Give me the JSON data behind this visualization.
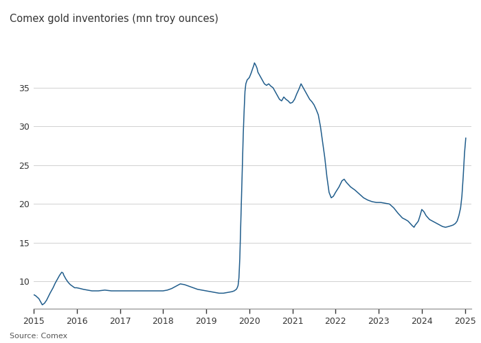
{
  "title": "Comex gold inventories (mn troy ounces)",
  "source": "Source: Comex",
  "line_color": "#1f5c8b",
  "background_color": "#ffffff",
  "xlim": [
    2015.0,
    2025.15
  ],
  "ylim": [
    6.5,
    41
  ],
  "yticks": [
    10,
    15,
    20,
    25,
    30,
    35
  ],
  "xtick_positions": [
    2015,
    2016,
    2017,
    2018,
    2019,
    2020,
    2021,
    2022,
    2023,
    2024,
    2025
  ],
  "xtick_labels": [
    "2015",
    "2016",
    "2017",
    "2018",
    "2019",
    "2020",
    "2021",
    "2022",
    "2023",
    "2024",
    "2025"
  ],
  "data": [
    [
      2015.0,
      8.3
    ],
    [
      2015.04,
      8.2
    ],
    [
      2015.08,
      8.0
    ],
    [
      2015.12,
      7.8
    ],
    [
      2015.16,
      7.4
    ],
    [
      2015.2,
      7.0
    ],
    [
      2015.25,
      7.2
    ],
    [
      2015.3,
      7.6
    ],
    [
      2015.38,
      8.5
    ],
    [
      2015.45,
      9.2
    ],
    [
      2015.5,
      9.8
    ],
    [
      2015.55,
      10.3
    ],
    [
      2015.6,
      10.8
    ],
    [
      2015.65,
      11.2
    ],
    [
      2015.68,
      11.1
    ],
    [
      2015.7,
      10.8
    ],
    [
      2015.75,
      10.3
    ],
    [
      2015.8,
      9.9
    ],
    [
      2015.85,
      9.6
    ],
    [
      2015.9,
      9.4
    ],
    [
      2015.95,
      9.2
    ],
    [
      2016.0,
      9.2
    ],
    [
      2016.08,
      9.1
    ],
    [
      2016.15,
      9.0
    ],
    [
      2016.25,
      8.9
    ],
    [
      2016.35,
      8.8
    ],
    [
      2016.5,
      8.8
    ],
    [
      2016.65,
      8.9
    ],
    [
      2016.8,
      8.8
    ],
    [
      2016.95,
      8.8
    ],
    [
      2017.1,
      8.8
    ],
    [
      2017.25,
      8.8
    ],
    [
      2017.4,
      8.8
    ],
    [
      2017.55,
      8.8
    ],
    [
      2017.7,
      8.8
    ],
    [
      2017.85,
      8.8
    ],
    [
      2018.0,
      8.8
    ],
    [
      2018.1,
      8.9
    ],
    [
      2018.2,
      9.1
    ],
    [
      2018.3,
      9.4
    ],
    [
      2018.4,
      9.7
    ],
    [
      2018.5,
      9.6
    ],
    [
      2018.6,
      9.4
    ],
    [
      2018.7,
      9.2
    ],
    [
      2018.8,
      9.0
    ],
    [
      2018.9,
      8.9
    ],
    [
      2019.0,
      8.8
    ],
    [
      2019.1,
      8.7
    ],
    [
      2019.2,
      8.6
    ],
    [
      2019.3,
      8.5
    ],
    [
      2019.4,
      8.5
    ],
    [
      2019.5,
      8.6
    ],
    [
      2019.6,
      8.7
    ],
    [
      2019.65,
      8.8
    ],
    [
      2019.7,
      9.0
    ],
    [
      2019.72,
      9.2
    ],
    [
      2019.74,
      9.5
    ],
    [
      2019.76,
      10.5
    ],
    [
      2019.78,
      13.0
    ],
    [
      2019.8,
      17.0
    ],
    [
      2019.82,
      21.0
    ],
    [
      2019.84,
      25.0
    ],
    [
      2019.86,
      29.0
    ],
    [
      2019.88,
      32.0
    ],
    [
      2019.9,
      34.5
    ],
    [
      2019.92,
      35.5
    ],
    [
      2019.95,
      36.0
    ],
    [
      2020.0,
      36.3
    ],
    [
      2020.03,
      36.7
    ],
    [
      2020.05,
      37.0
    ],
    [
      2020.08,
      37.5
    ],
    [
      2020.1,
      37.8
    ],
    [
      2020.12,
      38.2
    ],
    [
      2020.15,
      37.9
    ],
    [
      2020.18,
      37.5
    ],
    [
      2020.2,
      37.0
    ],
    [
      2020.25,
      36.5
    ],
    [
      2020.3,
      36.0
    ],
    [
      2020.35,
      35.5
    ],
    [
      2020.4,
      35.3
    ],
    [
      2020.45,
      35.5
    ],
    [
      2020.5,
      35.2
    ],
    [
      2020.55,
      35.0
    ],
    [
      2020.6,
      34.5
    ],
    [
      2020.65,
      34.0
    ],
    [
      2020.7,
      33.5
    ],
    [
      2020.75,
      33.3
    ],
    [
      2020.8,
      33.8
    ],
    [
      2020.85,
      33.5
    ],
    [
      2020.9,
      33.3
    ],
    [
      2020.95,
      33.0
    ],
    [
      2021.0,
      33.1
    ],
    [
      2021.05,
      33.5
    ],
    [
      2021.1,
      34.2
    ],
    [
      2021.15,
      34.8
    ],
    [
      2021.2,
      35.5
    ],
    [
      2021.25,
      35.0
    ],
    [
      2021.3,
      34.5
    ],
    [
      2021.35,
      34.0
    ],
    [
      2021.4,
      33.5
    ],
    [
      2021.45,
      33.2
    ],
    [
      2021.5,
      32.8
    ],
    [
      2021.55,
      32.2
    ],
    [
      2021.6,
      31.5
    ],
    [
      2021.65,
      30.0
    ],
    [
      2021.7,
      28.0
    ],
    [
      2021.75,
      26.0
    ],
    [
      2021.8,
      23.5
    ],
    [
      2021.85,
      21.5
    ],
    [
      2021.9,
      20.8
    ],
    [
      2021.95,
      21.0
    ],
    [
      2022.0,
      21.5
    ],
    [
      2022.08,
      22.2
    ],
    [
      2022.15,
      23.0
    ],
    [
      2022.2,
      23.2
    ],
    [
      2022.25,
      22.8
    ],
    [
      2022.35,
      22.2
    ],
    [
      2022.45,
      21.8
    ],
    [
      2022.55,
      21.3
    ],
    [
      2022.65,
      20.8
    ],
    [
      2022.75,
      20.5
    ],
    [
      2022.85,
      20.3
    ],
    [
      2022.95,
      20.2
    ],
    [
      2023.05,
      20.2
    ],
    [
      2023.15,
      20.1
    ],
    [
      2023.25,
      20.0
    ],
    [
      2023.35,
      19.5
    ],
    [
      2023.45,
      18.8
    ],
    [
      2023.55,
      18.2
    ],
    [
      2023.62,
      18.0
    ],
    [
      2023.68,
      17.8
    ],
    [
      2023.73,
      17.5
    ],
    [
      2023.78,
      17.2
    ],
    [
      2023.82,
      17.0
    ],
    [
      2023.85,
      17.3
    ],
    [
      2023.88,
      17.5
    ],
    [
      2023.92,
      17.8
    ],
    [
      2023.96,
      18.5
    ],
    [
      2024.0,
      19.3
    ],
    [
      2024.05,
      19.0
    ],
    [
      2024.1,
      18.5
    ],
    [
      2024.18,
      18.0
    ],
    [
      2024.28,
      17.7
    ],
    [
      2024.38,
      17.4
    ],
    [
      2024.48,
      17.1
    ],
    [
      2024.55,
      17.0
    ],
    [
      2024.62,
      17.1
    ],
    [
      2024.68,
      17.2
    ],
    [
      2024.73,
      17.3
    ],
    [
      2024.78,
      17.5
    ],
    [
      2024.82,
      17.8
    ],
    [
      2024.86,
      18.5
    ],
    [
      2024.9,
      19.5
    ],
    [
      2024.93,
      21.0
    ],
    [
      2024.96,
      23.5
    ],
    [
      2024.99,
      26.5
    ],
    [
      2025.02,
      28.5
    ]
  ]
}
